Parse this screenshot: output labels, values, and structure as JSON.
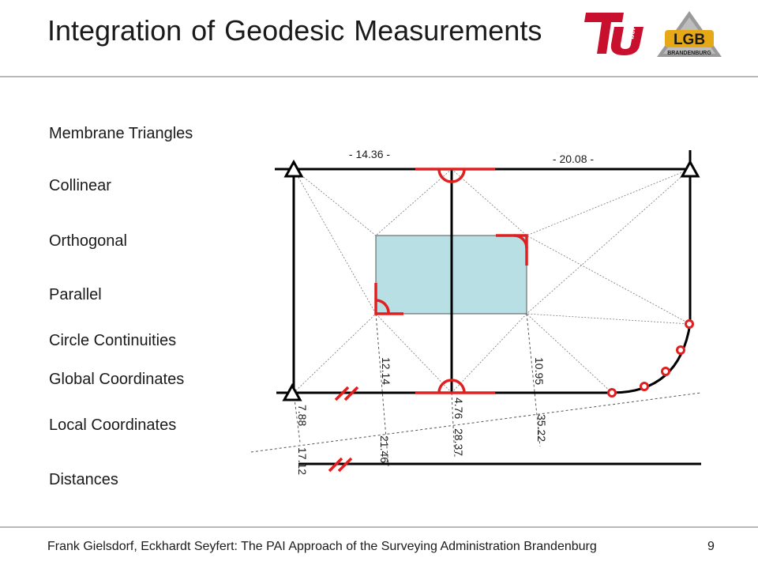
{
  "title": "Integration of Geodesic Measurements",
  "logos": {
    "tu": {
      "text": "TU",
      "subtext": "berlin"
    },
    "lgb": {
      "text": "LGB",
      "subtext": "BRANDENBURG"
    }
  },
  "labels": [
    "Membrane Triangles",
    "Collinear",
    "Orthogonal",
    "Parallel",
    "Circle Continuities",
    "Global Coordinates",
    "Local Coordinates",
    "Distances"
  ],
  "measurements": {
    "top_left_span": "- 14.36 -",
    "top_right_span": "- 20.08 -",
    "left_vertical": "12.14",
    "right_vertical": "10.95",
    "bottom_1": "7.88",
    "bottom_2": "4.76",
    "bottom_3": "28.37",
    "bottom_4": "35.22",
    "bottom_5": "21.46",
    "bottom_6": "17.12"
  },
  "colors": {
    "accent": "#e02020",
    "rectangle_fill": "#b8dfe3",
    "line": "#000000"
  },
  "footer": "Frank Gielsdorf, Eckhardt Seyfert: The PAI Approach of the Surveying Administration Brandenburg",
  "page_number": "9"
}
